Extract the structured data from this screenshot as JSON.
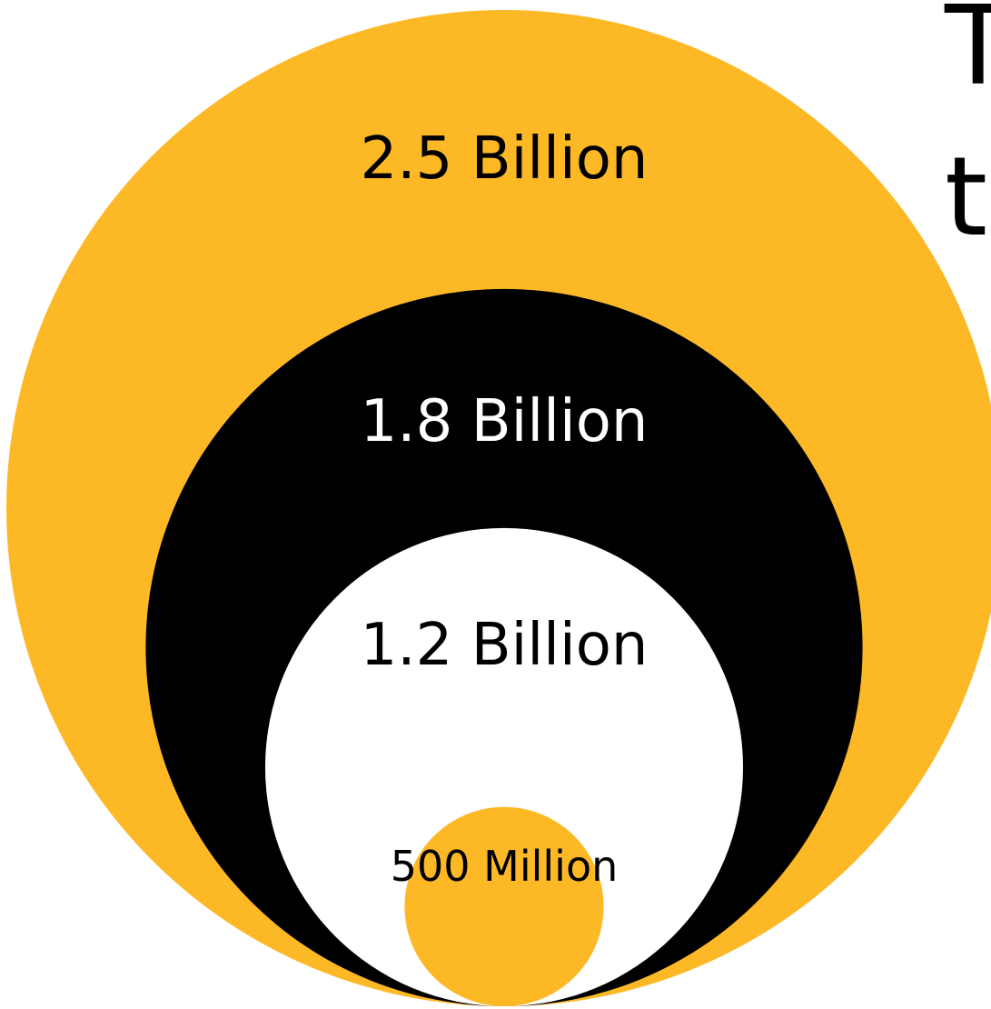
{
  "chart_data": {
    "type": "nested-circles",
    "title": "",
    "items": [
      {
        "label": "2.5 Billion",
        "value": 2.5,
        "unit": "Billion",
        "color": "#FDB826",
        "text_color": "#000000"
      },
      {
        "label": "1.8 Billion",
        "value": 1.8,
        "unit": "Billion",
        "color": "#000000",
        "text_color": "#FFFFFF"
      },
      {
        "label": "1.2 Billion",
        "value": 1.2,
        "unit": "Billion",
        "color": "#FFFFFF",
        "text_color": "#000000"
      },
      {
        "label": "500 Million",
        "value": 0.5,
        "unit": "Billion",
        "color": "#FDB826",
        "text_color": "#000000"
      }
    ],
    "cropped_text_fragments": [
      "T",
      "t"
    ]
  }
}
